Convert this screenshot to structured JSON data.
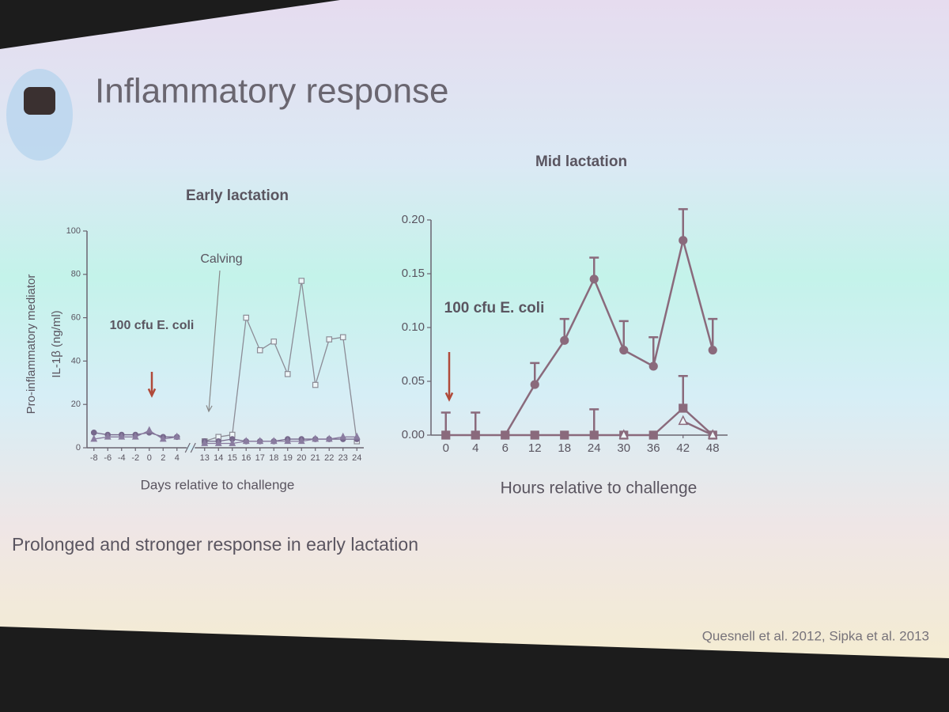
{
  "slide": {
    "title": "Inflammatory response",
    "conclusion": "Prolonged and stronger response in early lactation",
    "citation": "Quesnell et al. 2012, Sipka et al. 2013"
  },
  "chart_data": [
    {
      "type": "line",
      "title": "Early lactation",
      "y_label": [
        "Pro-inflammatory mediator",
        "IL-1β (ng/ml)"
      ],
      "x_label": "Days relative to challenge",
      "annotations": [
        "Calving",
        "100 cfu E. coli"
      ],
      "categories": [
        "-8",
        "-6",
        "-4",
        "-2",
        "0",
        "2",
        "4",
        null,
        "13",
        "14",
        "15",
        "16",
        "17",
        "18",
        "19",
        "20",
        "21",
        "22",
        "23",
        "24"
      ],
      "ylim": [
        0,
        100
      ],
      "yticks": [
        0,
        20,
        40,
        60,
        80,
        100
      ],
      "series": [
        {
          "color": "#8c8c96",
          "marker": "open-square",
          "values": [
            null,
            null,
            null,
            null,
            null,
            null,
            null,
            null,
            3,
            5,
            6,
            60,
            45,
            49,
            34,
            77,
            29,
            50,
            51,
            3
          ]
        },
        {
          "color": "#76698c",
          "marker": "filled-circle",
          "values": [
            7,
            6,
            6,
            6,
            7,
            5,
            5,
            null,
            3,
            3,
            4,
            3,
            3,
            3,
            4,
            4,
            4,
            4,
            4,
            4
          ]
        },
        {
          "color": "#8a7ca0",
          "marker": "filled-triangle",
          "values": [
            4,
            5,
            5,
            5,
            8,
            4,
            5,
            null,
            2,
            2,
            2,
            3,
            3,
            3,
            3,
            3,
            4,
            4,
            5,
            5
          ]
        }
      ]
    },
    {
      "type": "line",
      "title": "Mid lactation",
      "x_label": "Hours relative to challenge",
      "annotations": [
        "100 cfu E. coli"
      ],
      "categories": [
        "0",
        "4",
        "6",
        "12",
        "18",
        "24",
        "30",
        "36",
        "42",
        "48"
      ],
      "ylim": [
        0,
        0.2
      ],
      "yticks": [
        {
          "value": 0,
          "label": "0.00"
        },
        {
          "value": 0.05,
          "label": "0.05"
        },
        {
          "value": 0.1,
          "label": "0.10"
        },
        {
          "value": 0.15,
          "label": "0.15"
        },
        {
          "value": 0.2,
          "label": "0.20"
        }
      ],
      "series": [
        {
          "color": "#8a6a7c",
          "marker": "filled-circle",
          "values": [
            null,
            null,
            0,
            0.047,
            0.088,
            0.145,
            0.079,
            0.064,
            0.181,
            0.079
          ],
          "errors": [
            null,
            null,
            null,
            0.02,
            0.02,
            0.02,
            0.027,
            0.027,
            0.029,
            0.029
          ]
        },
        {
          "color": "#8a6a7c",
          "marker": "filled-square",
          "values": [
            0,
            0,
            0,
            0,
            0,
            0,
            0,
            0,
            0.025,
            0
          ],
          "errors": [
            0.021,
            0.021,
            null,
            null,
            null,
            0.024,
            null,
            null,
            0.03,
            null
          ]
        },
        {
          "color": "#8a6a7c",
          "marker": "open-triangle",
          "values": [
            null,
            null,
            null,
            null,
            null,
            null,
            0,
            null,
            0.013,
            0
          ]
        }
      ]
    }
  ]
}
